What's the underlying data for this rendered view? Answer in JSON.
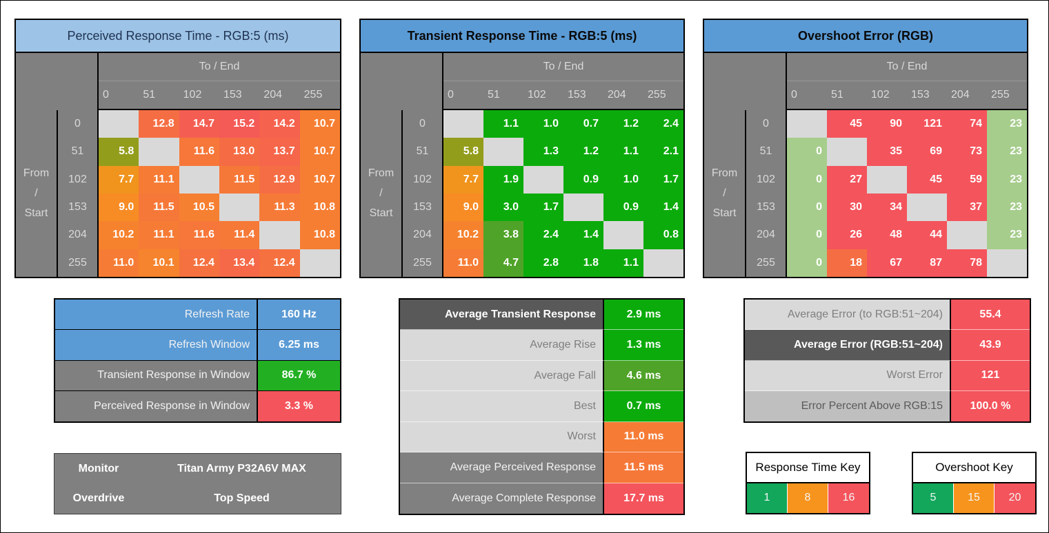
{
  "palette": {
    "page_bg": "#FFFFFF",
    "header_gray": "#808080",
    "header_text": "#D9D9D9",
    "blank_cell": "#D9D9D9",
    "title_light_blue": "#9DC3E6",
    "title_blue": "#5B9BD5",
    "bright_green": "#0CAB0C",
    "mid_green": "#4FA328",
    "olive": "#939D1C",
    "orange": "#F7941D",
    "salmon_red": "#F4545C",
    "light_green": "#A6CD8C",
    "dark_label": "#595959",
    "light_label": "#D9D9D9",
    "medium_label": "#BFBFBF"
  },
  "heatmaps": [
    {
      "id": "perceived-response",
      "title": "Perceived Response Time - RGB:5 (ms)",
      "title_bg": "#9DC3E6",
      "title_fg": "#1F3250",
      "title_bold": false,
      "top_axis_label": "To / End",
      "left_axis_label_lines": [
        "From",
        "/",
        "Start"
      ],
      "col_headers": [
        "0",
        "51",
        "102",
        "153",
        "204",
        "255"
      ],
      "row_headers": [
        "0",
        "51",
        "102",
        "153",
        "204",
        "255"
      ],
      "values": [
        [
          "",
          "12.8",
          "14.7",
          "15.2",
          "14.2",
          "10.7"
        ],
        [
          "5.8",
          "",
          "11.6",
          "13.0",
          "13.7",
          "10.7"
        ],
        [
          "7.7",
          "11.1",
          "",
          "11.5",
          "12.9",
          "10.7"
        ],
        [
          "9.0",
          "11.5",
          "10.5",
          "",
          "11.3",
          "10.8"
        ],
        [
          "10.2",
          "11.1",
          "11.6",
          "11.4",
          "",
          "10.8"
        ],
        [
          "11.0",
          "10.1",
          "12.4",
          "13.4",
          "12.4",
          ""
        ]
      ],
      "colors": [
        [
          "#D9D9D9",
          "#F56E43",
          "#F45E52",
          "#F45A56",
          "#F5624E",
          "#F67E32"
        ],
        [
          "#939D1C",
          "#D9D9D9",
          "#F67739",
          "#F56C44",
          "#F5664A",
          "#F67E32"
        ],
        [
          "#F0941D",
          "#F67B35",
          "#D9D9D9",
          "#F67839",
          "#F56D44",
          "#F67E32"
        ],
        [
          "#F78C25",
          "#F67839",
          "#F68031",
          "#D9D9D9",
          "#F67A37",
          "#F67E33"
        ],
        [
          "#F6822E",
          "#F67B35",
          "#F67739",
          "#F67938",
          "#D9D9D9",
          "#F67E33"
        ],
        [
          "#F67C35",
          "#F6832D",
          "#F57140",
          "#F56948",
          "#F57140",
          "#D9D9D9"
        ]
      ]
    },
    {
      "id": "transient-response",
      "title": "Transient Response Time - RGB:5 (ms)",
      "title_bg": "#5B9BD5",
      "title_fg": "#0A0A0A",
      "title_bold": true,
      "top_axis_label": "To / End",
      "left_axis_label_lines": [
        "From",
        "/",
        "Start"
      ],
      "col_headers": [
        "0",
        "51",
        "102",
        "153",
        "204",
        "255"
      ],
      "row_headers": [
        "0",
        "51",
        "102",
        "153",
        "204",
        "255"
      ],
      "values": [
        [
          "",
          "1.1",
          "1.0",
          "0.7",
          "1.2",
          "2.4"
        ],
        [
          "5.8",
          "",
          "1.3",
          "1.2",
          "1.1",
          "2.1"
        ],
        [
          "7.7",
          "1.9",
          "",
          "0.9",
          "1.0",
          "1.7"
        ],
        [
          "9.0",
          "3.0",
          "1.7",
          "",
          "0.9",
          "1.4"
        ],
        [
          "10.2",
          "3.8",
          "2.4",
          "1.4",
          "",
          "0.8"
        ],
        [
          "11.0",
          "4.7",
          "2.8",
          "1.8",
          "1.1",
          ""
        ]
      ],
      "colors": [
        [
          "#D9D9D9",
          "#0CAB0C",
          "#0CAB0C",
          "#0CAB0C",
          "#0CAB0C",
          "#0CAB0C"
        ],
        [
          "#939D1C",
          "#D9D9D9",
          "#0CAB0C",
          "#0CAB0C",
          "#0CAB0C",
          "#0CAB0C"
        ],
        [
          "#F0941D",
          "#0CAB0C",
          "#D9D9D9",
          "#0CAB0C",
          "#0CAB0C",
          "#0CAB0C"
        ],
        [
          "#F78C25",
          "#0CAB0C",
          "#0CAB0C",
          "#D9D9D9",
          "#0CAB0C",
          "#0CAB0C"
        ],
        [
          "#F6822E",
          "#4FA328",
          "#0CAB0C",
          "#0CAB0C",
          "#D9D9D9",
          "#0CAB0C"
        ],
        [
          "#F67C35",
          "#4FA328",
          "#0CAB0C",
          "#0CAB0C",
          "#0CAB0C",
          "#D9D9D9"
        ]
      ]
    },
    {
      "id": "overshoot-error",
      "title": "Overshoot Error (RGB)",
      "title_bg": "#5B9BD5",
      "title_fg": "#0A0A0A",
      "title_bold": true,
      "top_axis_label": "To / End",
      "left_axis_label_lines": [
        "From",
        "/",
        "Start"
      ],
      "col_headers": [
        "0",
        "51",
        "102",
        "153",
        "204",
        "255"
      ],
      "row_headers": [
        "0",
        "51",
        "102",
        "153",
        "204",
        "255"
      ],
      "values": [
        [
          "",
          "45",
          "90",
          "121",
          "74",
          "23"
        ],
        [
          "0",
          "",
          "35",
          "69",
          "73",
          "23"
        ],
        [
          "0",
          "27",
          "",
          "45",
          "59",
          "23"
        ],
        [
          "0",
          "30",
          "34",
          "",
          "37",
          "23"
        ],
        [
          "0",
          "26",
          "48",
          "44",
          "",
          "23"
        ],
        [
          "0",
          "18",
          "67",
          "87",
          "78",
          ""
        ]
      ],
      "colors": [
        [
          "#D9D9D9",
          "#F4545C",
          "#F4545C",
          "#F4545C",
          "#F4545C",
          "#A6CD8C"
        ],
        [
          "#A6CD8C",
          "#D9D9D9",
          "#F4545C",
          "#F4545C",
          "#F4545C",
          "#A6CD8C"
        ],
        [
          "#A6CD8C",
          "#F4545C",
          "#D9D9D9",
          "#F4545C",
          "#F4545C",
          "#A6CD8C"
        ],
        [
          "#A6CD8C",
          "#F4545C",
          "#F4545C",
          "#D9D9D9",
          "#F4545C",
          "#A6CD8C"
        ],
        [
          "#A6CD8C",
          "#F4545C",
          "#F4545C",
          "#F4545C",
          "#D9D9D9",
          "#A6CD8C"
        ],
        [
          "#A6CD8C",
          "#F56E43",
          "#F4545C",
          "#F4545C",
          "#F4545C",
          "#D9D9D9"
        ]
      ]
    }
  ],
  "summary_tables": [
    {
      "id": "sum-left",
      "sep": "#000000",
      "divider": "#000000",
      "rows": [
        {
          "label": "Refresh Rate",
          "value": "160 Hz",
          "label_bg": "#5B9BD5",
          "label_fg": "#F2F2F2",
          "label_bold": false,
          "value_bg": "#5B9BD5"
        },
        {
          "label": "Refresh Window",
          "value": "6.25 ms",
          "label_bg": "#5B9BD5",
          "label_fg": "#F2F2F2",
          "label_bold": false,
          "value_bg": "#5B9BD5"
        },
        {
          "label": "Transient Response in Window",
          "value": "86.7 %",
          "label_bg": "#808080",
          "label_fg": "#F2F2F2",
          "label_bold": false,
          "value_bg": "#22B022"
        },
        {
          "label": "Perceived Response in Window",
          "value": "3.3 %",
          "label_bg": "#808080",
          "label_fg": "#F2F2F2",
          "label_bold": false,
          "value_bg": "#F4545C"
        }
      ]
    },
    {
      "id": "sum-mid",
      "sep": "#FFFFFF99",
      "divider": "#000000",
      "rows": [
        {
          "label": "Average Transient Response",
          "value": "2.9 ms",
          "label_bg": "#595959",
          "label_fg": "#FFFFFF",
          "label_bold": true,
          "value_bg": "#0CAB0C"
        },
        {
          "label": "Average Rise",
          "value": "1.3 ms",
          "label_bg": "#D9D9D9",
          "label_fg": "#7F7F7F",
          "label_bold": false,
          "value_bg": "#0CAB0C"
        },
        {
          "label": "Average Fall",
          "value": "4.6 ms",
          "label_bg": "#D9D9D9",
          "label_fg": "#7F7F7F",
          "label_bold": false,
          "value_bg": "#4FA328"
        },
        {
          "label": "Best",
          "value": "0.7 ms",
          "label_bg": "#D9D9D9",
          "label_fg": "#7F7F7F",
          "label_bold": false,
          "value_bg": "#0CAB0C"
        },
        {
          "label": "Worst",
          "value": "11.0 ms",
          "label_bg": "#D9D9D9",
          "label_fg": "#7F7F7F",
          "label_bold": false,
          "value_bg": "#F67C35"
        },
        {
          "label": "Average Perceived Response",
          "value": "11.5 ms",
          "label_bg": "#808080",
          "label_fg": "#F2F2F2",
          "label_bold": false,
          "value_bg": "#F67839"
        },
        {
          "label": "Average Complete Response",
          "value": "17.7 ms",
          "label_bg": "#808080",
          "label_fg": "#F2F2F2",
          "label_bold": false,
          "value_bg": "#F4545C"
        }
      ]
    },
    {
      "id": "sum-right",
      "sep": "#FFFFFF99",
      "divider": "#000000",
      "rows": [
        {
          "label": "Average Error (to RGB:51~204)",
          "value": "55.4",
          "label_bg": "#D9D9D9",
          "label_fg": "#7F7F7F",
          "label_bold": false,
          "value_bg": "#F4545C"
        },
        {
          "label": "Average Error (RGB:51~204)",
          "value": "43.9",
          "label_bg": "#595959",
          "label_fg": "#FFFFFF",
          "label_bold": true,
          "value_bg": "#F4545C"
        },
        {
          "label": "Worst Error",
          "value": "121",
          "label_bg": "#D9D9D9",
          "label_fg": "#7F7F7F",
          "label_bold": false,
          "value_bg": "#F4545C"
        },
        {
          "label": "Error Percent Above RGB:15",
          "value": "100.0 %",
          "label_bg": "#BFBFBF",
          "label_fg": "#595959",
          "label_bold": false,
          "value_bg": "#F4545C"
        }
      ]
    }
  ],
  "monitor_table": {
    "rows": [
      {
        "label": "Monitor",
        "value": "Titan Army P32A6V MAX"
      },
      {
        "label": "Overdrive",
        "value": "Top Speed"
      }
    ]
  },
  "keys": [
    {
      "title": "Response Time Key",
      "cells": [
        {
          "label": "1",
          "color": "#12A75B"
        },
        {
          "label": "8",
          "color": "#F7941D"
        },
        {
          "label": "16",
          "color": "#F4545C"
        }
      ]
    },
    {
      "title": "Overshoot Key",
      "cells": [
        {
          "label": "5",
          "color": "#12A75B"
        },
        {
          "label": "15",
          "color": "#F7941D"
        },
        {
          "label": "20",
          "color": "#F4545C"
        }
      ]
    }
  ],
  "chart_data": [
    {
      "type": "heatmap",
      "title": "Perceived Response Time - RGB:5 (ms)",
      "xlabel": "To / End",
      "ylabel": "From / Start",
      "x_categories": [
        0,
        51,
        102,
        153,
        204,
        255
      ],
      "y_categories": [
        0,
        51,
        102,
        153,
        204,
        255
      ],
      "units": "ms",
      "matrix": [
        [
          null,
          12.8,
          14.7,
          15.2,
          14.2,
          10.7
        ],
        [
          5.8,
          null,
          11.6,
          13.0,
          13.7,
          10.7
        ],
        [
          7.7,
          11.1,
          null,
          11.5,
          12.9,
          10.7
        ],
        [
          9.0,
          11.5,
          10.5,
          null,
          11.3,
          10.8
        ],
        [
          10.2,
          11.1,
          11.6,
          11.4,
          null,
          10.8
        ],
        [
          11.0,
          10.1,
          12.4,
          13.4,
          12.4,
          null
        ]
      ],
      "color_key": {
        "name": "Response Time Key",
        "green": 1,
        "orange": 8,
        "red": 16
      }
    },
    {
      "type": "heatmap",
      "title": "Transient Response Time - RGB:5 (ms)",
      "xlabel": "To / End",
      "ylabel": "From / Start",
      "x_categories": [
        0,
        51,
        102,
        153,
        204,
        255
      ],
      "y_categories": [
        0,
        51,
        102,
        153,
        204,
        255
      ],
      "units": "ms",
      "matrix": [
        [
          null,
          1.1,
          1.0,
          0.7,
          1.2,
          2.4
        ],
        [
          5.8,
          null,
          1.3,
          1.2,
          1.1,
          2.1
        ],
        [
          7.7,
          1.9,
          null,
          0.9,
          1.0,
          1.7
        ],
        [
          9.0,
          3.0,
          1.7,
          null,
          0.9,
          1.4
        ],
        [
          10.2,
          3.8,
          2.4,
          1.4,
          null,
          0.8
        ],
        [
          11.0,
          4.7,
          2.8,
          1.8,
          1.1,
          null
        ]
      ],
      "color_key": {
        "name": "Response Time Key",
        "green": 1,
        "orange": 8,
        "red": 16
      }
    },
    {
      "type": "heatmap",
      "title": "Overshoot Error (RGB)",
      "xlabel": "To / End",
      "ylabel": "From / Start",
      "x_categories": [
        0,
        51,
        102,
        153,
        204,
        255
      ],
      "y_categories": [
        0,
        51,
        102,
        153,
        204,
        255
      ],
      "units": "RGB",
      "matrix": [
        [
          null,
          45,
          90,
          121,
          74,
          23
        ],
        [
          0,
          null,
          35,
          69,
          73,
          23
        ],
        [
          0,
          27,
          null,
          45,
          59,
          23
        ],
        [
          0,
          30,
          34,
          null,
          37,
          23
        ],
        [
          0,
          26,
          48,
          44,
          null,
          23
        ],
        [
          0,
          18,
          67,
          87,
          78,
          null
        ]
      ],
      "color_key": {
        "name": "Overshoot Key",
        "green": 5,
        "orange": 15,
        "red": 20
      }
    },
    {
      "type": "table",
      "rows": [
        [
          "Refresh Rate",
          "160 Hz"
        ],
        [
          "Refresh Window",
          "6.25 ms"
        ],
        [
          "Transient Response in Window",
          "86.7 %"
        ],
        [
          "Perceived Response in Window",
          "3.3 %"
        ]
      ]
    },
    {
      "type": "table",
      "rows": [
        [
          "Average Transient Response",
          "2.9 ms"
        ],
        [
          "Average Rise",
          "1.3 ms"
        ],
        [
          "Average Fall",
          "4.6 ms"
        ],
        [
          "Best",
          "0.7 ms"
        ],
        [
          "Worst",
          "11.0 ms"
        ],
        [
          "Average Perceived Response",
          "11.5 ms"
        ],
        [
          "Average Complete Response",
          "17.7 ms"
        ]
      ]
    },
    {
      "type": "table",
      "rows": [
        [
          "Average Error (to RGB:51~204)",
          "55.4"
        ],
        [
          "Average Error (RGB:51~204)",
          "43.9"
        ],
        [
          "Worst Error",
          "121"
        ],
        [
          "Error Percent Above RGB:15",
          "100.0 %"
        ]
      ]
    },
    {
      "type": "table",
      "rows": [
        [
          "Monitor",
          "Titan Army P32A6V MAX"
        ],
        [
          "Overdrive",
          "Top Speed"
        ]
      ]
    }
  ]
}
